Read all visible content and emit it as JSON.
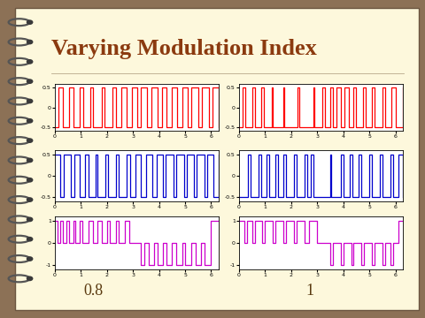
{
  "title": "Varying Modulation Index",
  "column_labels": [
    "0.8",
    "1"
  ],
  "chart_data": [
    {
      "type": "line",
      "line_style": "steps",
      "color": "#ff0000",
      "x": [
        0,
        0.15,
        0.3,
        0.55,
        0.7,
        0.95,
        1.1,
        1.35,
        1.45,
        1.8,
        1.9,
        2.2,
        2.35,
        2.55,
        2.75,
        2.95,
        3.15,
        3.3,
        3.55,
        3.7,
        3.95,
        4.1,
        4.3,
        4.5,
        4.7,
        4.9,
        5.1,
        5.25,
        5.5,
        5.65,
        5.9,
        6.05,
        6.28
      ],
      "values": [
        -0.5,
        0.5,
        -0.5,
        0.5,
        -0.5,
        0.5,
        -0.5,
        0.5,
        -0.5,
        0.5,
        -0.5,
        0.5,
        -0.5,
        0.5,
        -0.5,
        0.5,
        -0.5,
        0.5,
        -0.5,
        0.5,
        -0.5,
        0.5,
        -0.5,
        0.5,
        -0.5,
        0.5,
        -0.5,
        0.5,
        -0.5,
        0.5,
        -0.5,
        0.5,
        -0.5
      ],
      "xlim": [
        0,
        6.28
      ],
      "xticks": [
        0,
        1,
        2,
        3,
        4,
        5,
        6
      ],
      "ylim": [
        -0.6,
        0.6
      ],
      "yticks": [
        -0.5,
        0,
        0.5
      ]
    },
    {
      "type": "line",
      "line_style": "steps",
      "color": "#0000cc",
      "x": [
        0,
        0.2,
        0.35,
        0.6,
        0.75,
        0.95,
        1.15,
        1.3,
        1.55,
        1.65,
        1.95,
        2.05,
        2.35,
        2.45,
        2.75,
        2.9,
        3.1,
        3.3,
        3.5,
        3.75,
        3.9,
        4.15,
        4.25,
        4.55,
        4.65,
        4.95,
        5.05,
        5.35,
        5.45,
        5.75,
        5.85,
        6.1,
        6.28
      ],
      "values": [
        0.5,
        -0.5,
        0.5,
        -0.5,
        0.5,
        -0.5,
        0.5,
        -0.5,
        0.5,
        -0.5,
        0.5,
        -0.5,
        0.5,
        -0.5,
        0.5,
        -0.5,
        0.5,
        -0.5,
        0.5,
        -0.5,
        0.5,
        -0.5,
        0.5,
        -0.5,
        0.5,
        -0.5,
        0.5,
        -0.5,
        0.5,
        -0.5,
        0.5,
        -0.5,
        0.5
      ],
      "xlim": [
        0,
        6.28
      ],
      "xticks": [
        0,
        1,
        2,
        3,
        4,
        5,
        6
      ],
      "ylim": [
        -0.6,
        0.6
      ],
      "yticks": [
        -0.5,
        0,
        0.5
      ]
    },
    {
      "type": "line",
      "line_style": "steps",
      "color": "#cc00cc",
      "x": [
        0,
        0.1,
        0.2,
        0.3,
        0.45,
        0.55,
        0.7,
        0.8,
        0.95,
        1.05,
        1.3,
        1.45,
        1.65,
        1.8,
        2.0,
        2.1,
        2.35,
        2.45,
        2.7,
        2.85,
        3.1,
        3.3,
        3.45,
        3.6,
        3.8,
        3.95,
        4.15,
        4.3,
        4.5,
        4.65,
        4.9,
        5.0,
        5.25,
        5.4,
        5.6,
        5.75,
        6.0,
        6.28
      ],
      "values": [
        1,
        0,
        1,
        0,
        1,
        0,
        1,
        0,
        1,
        0,
        1,
        0,
        1,
        0,
        1,
        0,
        1,
        0,
        1,
        0,
        0,
        -1,
        0,
        -1,
        0,
        -1,
        0,
        -1,
        0,
        -1,
        0,
        -1,
        0,
        -1,
        0,
        -1,
        1,
        1
      ],
      "xlim": [
        0,
        6.28
      ],
      "xticks": [
        0,
        1,
        2,
        3,
        4,
        5,
        6
      ],
      "ylim": [
        -1.2,
        1.2
      ],
      "yticks": [
        -1,
        0,
        1
      ]
    },
    {
      "type": "line",
      "line_style": "steps",
      "color": "#ff0000",
      "x": [
        0,
        0.15,
        0.25,
        0.5,
        0.6,
        0.85,
        0.95,
        1.25,
        1.3,
        1.7,
        1.75,
        2.25,
        2.3,
        2.85,
        2.9,
        3.2,
        3.3,
        3.5,
        3.6,
        3.75,
        3.9,
        4.05,
        4.2,
        4.4,
        4.5,
        4.75,
        4.85,
        5.1,
        5.2,
        5.5,
        5.6,
        5.85,
        6.0,
        6.28
      ],
      "values": [
        -0.5,
        0.5,
        -0.5,
        0.5,
        -0.5,
        0.5,
        -0.5,
        0.5,
        -0.5,
        0.5,
        -0.5,
        0.5,
        -0.5,
        0.5,
        -0.5,
        0.5,
        -0.5,
        0.5,
        -0.5,
        0.5,
        -0.5,
        0.5,
        -0.5,
        0.5,
        -0.5,
        0.5,
        -0.5,
        0.5,
        -0.5,
        0.5,
        -0.5,
        0.5,
        -0.5,
        0.5
      ],
      "xlim": [
        0,
        6.28
      ],
      "xticks": [
        0,
        1,
        2,
        3,
        4,
        5,
        6
      ],
      "ylim": [
        -0.6,
        0.6
      ],
      "yticks": [
        -0.5,
        0,
        0.5
      ]
    },
    {
      "type": "line",
      "line_style": "steps",
      "color": "#0000cc",
      "x": [
        0,
        0.35,
        0.45,
        0.75,
        0.85,
        1.05,
        1.15,
        1.4,
        1.5,
        1.7,
        1.8,
        2.1,
        2.2,
        2.5,
        2.6,
        2.75,
        2.85,
        3.5,
        3.55,
        3.9,
        4.0,
        4.25,
        4.35,
        4.6,
        4.7,
        5.0,
        5.1,
        5.4,
        5.5,
        5.8,
        5.9,
        6.1,
        6.28
      ],
      "values": [
        -0.5,
        0.5,
        -0.5,
        0.5,
        -0.5,
        0.5,
        -0.5,
        0.5,
        -0.5,
        0.5,
        -0.5,
        0.5,
        -0.5,
        0.5,
        -0.5,
        0.5,
        -0.5,
        0.5,
        -0.5,
        0.5,
        -0.5,
        0.5,
        -0.5,
        0.5,
        -0.5,
        0.5,
        -0.5,
        0.5,
        -0.5,
        0.5,
        -0.5,
        0.5,
        -0.5
      ],
      "xlim": [
        0,
        6.28
      ],
      "xticks": [
        0,
        1,
        2,
        3,
        4,
        5,
        6
      ],
      "ylim": [
        -0.6,
        0.6
      ],
      "yticks": [
        -0.5,
        0,
        0.5
      ]
    },
    {
      "type": "line",
      "line_style": "steps",
      "color": "#cc00cc",
      "x": [
        0,
        0.2,
        0.3,
        0.5,
        0.6,
        0.9,
        1.0,
        1.3,
        1.4,
        1.7,
        1.8,
        2.1,
        2.2,
        2.5,
        2.7,
        3.0,
        3.2,
        3.5,
        3.6,
        3.9,
        4.0,
        4.3,
        4.4,
        4.7,
        4.8,
        5.1,
        5.2,
        5.5,
        5.6,
        5.8,
        5.9,
        6.1,
        6.28
      ],
      "values": [
        1,
        0,
        1,
        0,
        1,
        0,
        1,
        0,
        1,
        0,
        1,
        0,
        1,
        0,
        1,
        0,
        0,
        -1,
        0,
        -1,
        0,
        -1,
        0,
        -1,
        0,
        -1,
        0,
        -1,
        0,
        -1,
        0,
        1,
        1
      ],
      "xlim": [
        0,
        6.28
      ],
      "xticks": [
        0,
        1,
        2,
        3,
        4,
        5,
        6
      ],
      "ylim": [
        -1.2,
        1.2
      ],
      "yticks": [
        -1,
        0,
        1
      ]
    }
  ]
}
